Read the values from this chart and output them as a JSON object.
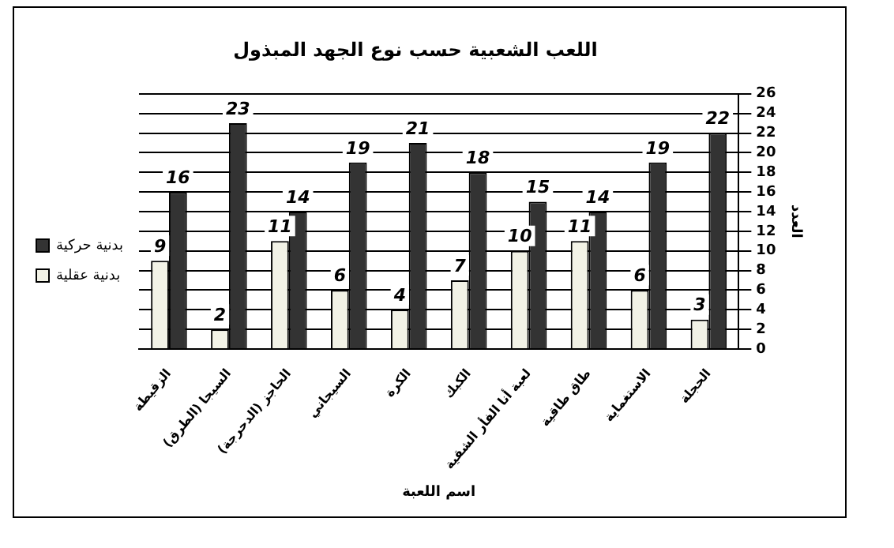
{
  "chart_data": {
    "type": "bar",
    "title": "اللعب الشعبية حسب نوع الجهد المبذول",
    "xlabel": "اسم اللعبة",
    "ylabel": "العدد",
    "categories": [
      "الزقيطة",
      "السيجا (الطرق)",
      "الحاجز (الدحرجة)",
      "السيجاني",
      "الكرة",
      "الكبك",
      "لعبة أنا الفأر الشقية",
      "طاق طاقية",
      "الاستغماية",
      "الحجلة"
    ],
    "series": [
      {
        "name": "بدنية عقلية",
        "color": "#f2f2e6",
        "values": [
          9,
          2,
          11,
          6,
          4,
          7,
          10,
          11,
          6,
          3
        ]
      },
      {
        "name": "بدنية حركية",
        "color": "#333333",
        "values": [
          16,
          23,
          14,
          19,
          21,
          18,
          15,
          14,
          19,
          22
        ]
      }
    ],
    "ylim": [
      0,
      26
    ],
    "yticks": [
      0,
      2,
      4,
      6,
      8,
      10,
      12,
      14,
      16,
      18,
      20,
      22,
      24,
      26
    ],
    "grid": "y",
    "legend": "left",
    "data_labels": true
  }
}
